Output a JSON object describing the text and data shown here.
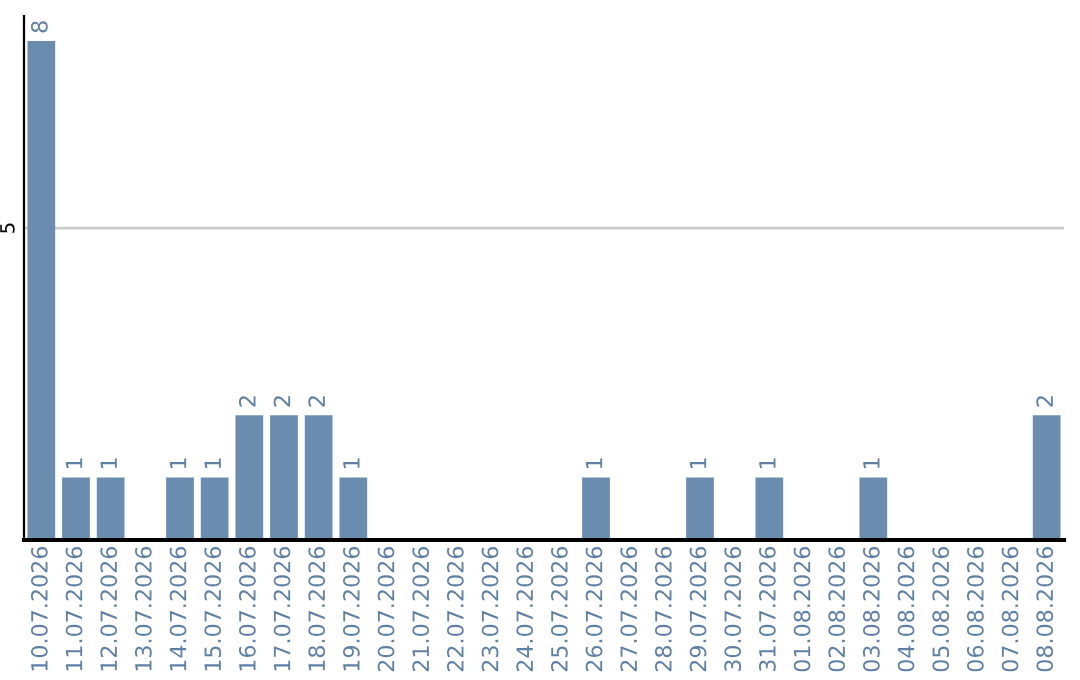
{
  "chart_data": {
    "type": "bar",
    "categories": [
      "10.07.2026",
      "11.07.2026",
      "12.07.2026",
      "13.07.2026",
      "14.07.2026",
      "15.07.2026",
      "16.07.2026",
      "17.07.2026",
      "18.07.2026",
      "19.07.2026",
      "20.07.2026",
      "21.07.2026",
      "22.07.2026",
      "23.07.2026",
      "24.07.2026",
      "25.07.2026",
      "26.07.2026",
      "27.07.2026",
      "28.07.2026",
      "29.07.2026",
      "30.07.2026",
      "31.07.2026",
      "01.08.2026",
      "02.08.2026",
      "03.08.2026",
      "04.08.2026",
      "05.08.2026",
      "06.08.2026",
      "07.08.2026",
      "08.08.2026"
    ],
    "values": [
      8,
      1,
      1,
      0,
      1,
      1,
      2,
      2,
      2,
      1,
      0,
      0,
      0,
      0,
      0,
      0,
      1,
      0,
      0,
      1,
      0,
      1,
      0,
      0,
      1,
      0,
      0,
      0,
      0,
      2
    ],
    "value_labels": [
      "8",
      "1",
      "1",
      null,
      "1",
      "1",
      "2",
      "2",
      "2",
      "1",
      null,
      null,
      null,
      null,
      null,
      null,
      "1",
      null,
      null,
      "1",
      null,
      "1",
      null,
      null,
      "1",
      null,
      null,
      null,
      null,
      "2"
    ],
    "color": "#6a8caf",
    "ylim": [
      0,
      8.4
    ],
    "yticks": [
      5
    ],
    "grid": "y"
  }
}
